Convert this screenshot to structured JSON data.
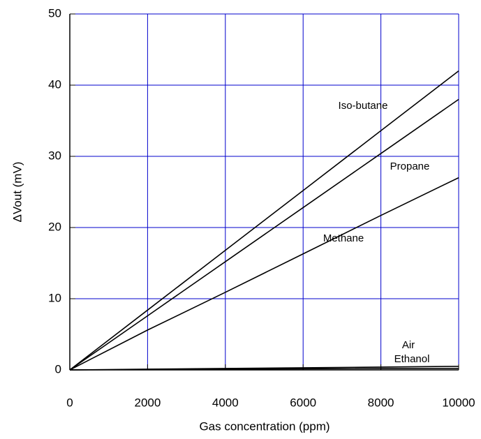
{
  "chart_data": {
    "type": "line",
    "x_label": "Gas concentration (ppm)",
    "y_label": "ΔVout (mV)",
    "x": [
      0,
      2000,
      4000,
      6000,
      8000,
      10000
    ],
    "series": [
      {
        "name": "Iso-butane",
        "color": "#000000",
        "values": [
          0,
          8.4,
          16.8,
          25.2,
          33.6,
          42
        ]
      },
      {
        "name": "Propane",
        "color": "#000000",
        "values": [
          0,
          7.6,
          15.2,
          22.8,
          30.4,
          38
        ]
      },
      {
        "name": "Methane",
        "color": "#000000",
        "values": [
          0,
          5.6,
          10.9,
          16.3,
          21.7,
          27
        ]
      },
      {
        "name": "Air",
        "color": "#000000",
        "values": [
          0,
          0.1,
          0.2,
          0.3,
          0.4,
          0.5
        ]
      },
      {
        "name": "Ethanol",
        "color": "#000000",
        "values": [
          0,
          0.05,
          0.1,
          0.15,
          0.2,
          0.2
        ]
      }
    ],
    "xlim": [
      0,
      10000
    ],
    "xticks": [
      0,
      2000,
      4000,
      6000,
      8000,
      10000
    ],
    "ylim": [
      0,
      50
    ],
    "yticks": [
      0,
      10,
      20,
      30,
      40,
      50
    ],
    "grid": true,
    "grid_color": "#0000cc"
  }
}
